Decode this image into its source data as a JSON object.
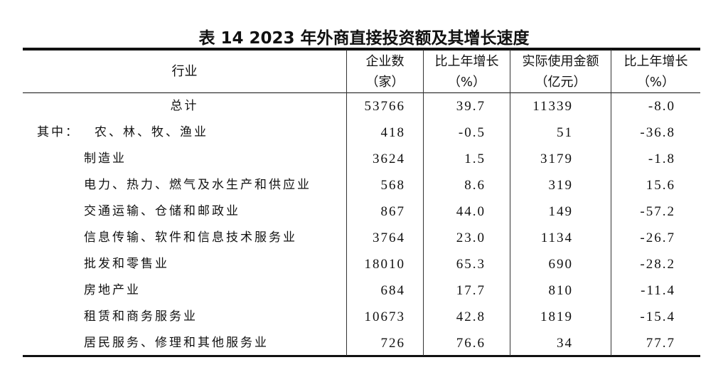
{
  "title": "表 14   2023 年外商直接投资额及其增长速度",
  "headers": {
    "industry": "行业",
    "enterprises": [
      "企业数",
      "（家）"
    ],
    "ent_growth": [
      "比上年增长",
      "（%）"
    ],
    "amount": [
      "实际使用金额",
      "（亿元）"
    ],
    "amt_growth": [
      "比上年增长",
      "（%）"
    ]
  },
  "prefix": "其中：",
  "rows": [
    {
      "industry": "总计",
      "enterprises": "53766",
      "ent_growth": "39.7",
      "amount": "11339",
      "amt_growth": "-8.0"
    },
    {
      "industry": "农、林、牧、渔业",
      "enterprises": "418",
      "ent_growth": "-0.5",
      "amount": "51",
      "amt_growth": "-36.8"
    },
    {
      "industry": "制造业",
      "enterprises": "3624",
      "ent_growth": "1.5",
      "amount": "3179",
      "amt_growth": "-1.8"
    },
    {
      "industry": "电力、热力、燃气及水生产和供应业",
      "enterprises": "568",
      "ent_growth": "8.6",
      "amount": "319",
      "amt_growth": "15.6"
    },
    {
      "industry": "交通运输、仓储和邮政业",
      "enterprises": "867",
      "ent_growth": "44.0",
      "amount": "149",
      "amt_growth": "-57.2"
    },
    {
      "industry": "信息传输、软件和信息技术服务业",
      "enterprises": "3764",
      "ent_growth": "23.0",
      "amount": "1134",
      "amt_growth": "-26.7"
    },
    {
      "industry": "批发和零售业",
      "enterprises": "18010",
      "ent_growth": "65.3",
      "amount": "690",
      "amt_growth": "-28.2"
    },
    {
      "industry": "房地产业",
      "enterprises": "684",
      "ent_growth": "17.7",
      "amount": "810",
      "amt_growth": "-11.4"
    },
    {
      "industry": "租赁和商务服务业",
      "enterprises": "10673",
      "ent_growth": "42.8",
      "amount": "1819",
      "amt_growth": "-15.4"
    },
    {
      "industry": "居民服务、修理和其他服务业",
      "enterprises": "726",
      "ent_growth": "76.6",
      "amount": "34",
      "amt_growth": "77.7"
    }
  ]
}
